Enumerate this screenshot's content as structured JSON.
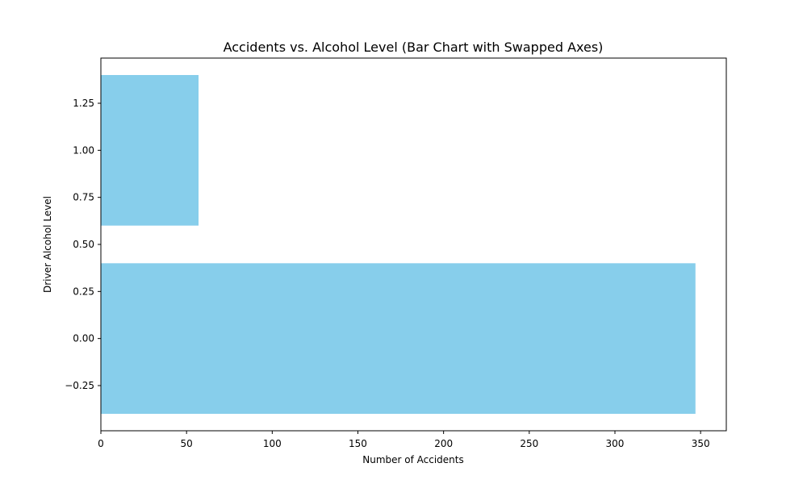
{
  "chart_data": {
    "type": "bar",
    "orientation": "horizontal",
    "title": "Accidents vs. Alcohol Level (Bar Chart with Swapped Axes)",
    "xlabel": "Number of Accidents",
    "ylabel": "Driver Alcohol Level",
    "xlim": [
      0,
      365
    ],
    "ylim": [
      -0.49,
      1.49
    ],
    "x_ticks": [
      0,
      50,
      100,
      150,
      200,
      250,
      300,
      350
    ],
    "x_tick_labels": [
      "0",
      "50",
      "100",
      "150",
      "200",
      "250",
      "300",
      "350"
    ],
    "y_ticks": [
      -0.25,
      0.0,
      0.25,
      0.5,
      0.75,
      1.0,
      1.25
    ],
    "y_tick_labels": [
      "−0.25",
      "0.00",
      "0.25",
      "0.50",
      "0.75",
      "1.00",
      "1.25"
    ],
    "bar_height": 0.8,
    "bars": [
      {
        "alcohol_level": 0,
        "accidents": 347
      },
      {
        "alcohol_level": 1,
        "accidents": 57
      }
    ],
    "bar_color": "#87CEEB",
    "grid": false,
    "legend": "none"
  }
}
